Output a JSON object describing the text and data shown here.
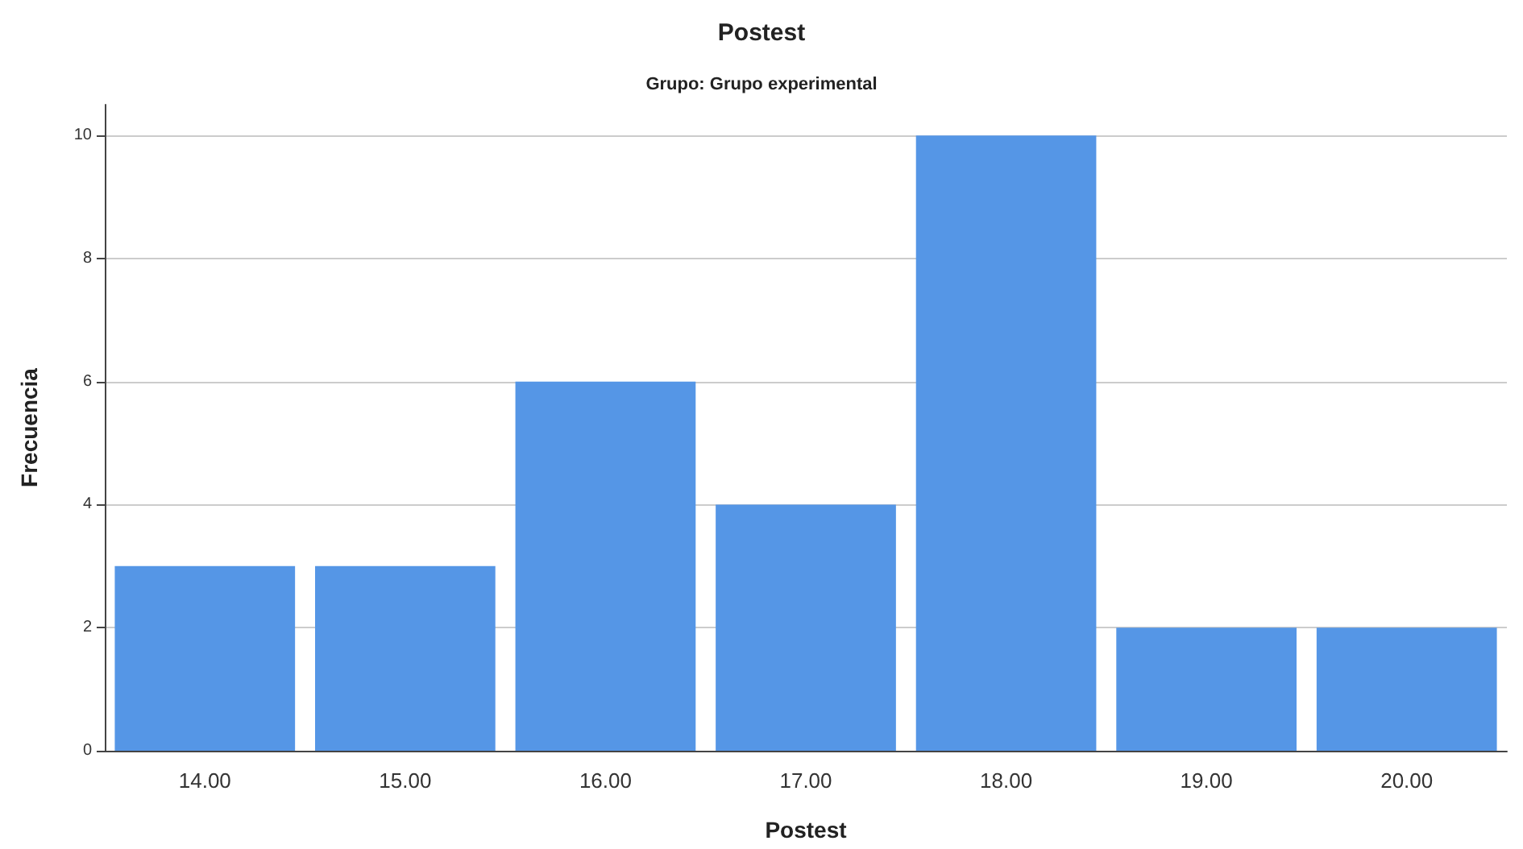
{
  "chart_data": {
    "type": "bar",
    "title": "Postest",
    "subtitle": "Grupo: Grupo experimental",
    "xlabel": "Postest",
    "ylabel": "Frecuencia",
    "categories": [
      "14.00",
      "15.00",
      "16.00",
      "17.00",
      "18.00",
      "19.00",
      "20.00"
    ],
    "values": [
      3,
      3,
      6,
      4,
      10,
      2,
      2
    ],
    "color": "#5596e6",
    "ylim": [
      0,
      10.5
    ],
    "yticks": [
      0,
      2,
      4,
      6,
      8,
      10
    ],
    "grid": "y"
  }
}
